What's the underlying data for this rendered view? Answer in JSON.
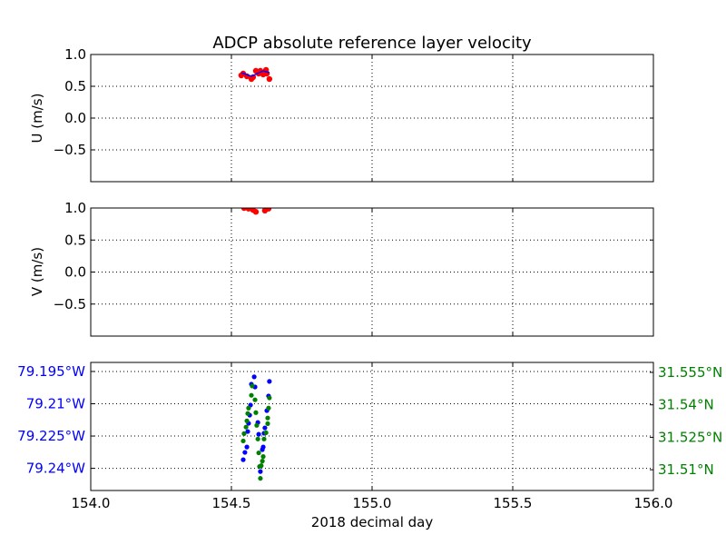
{
  "chart_data": {
    "type": "scatter",
    "title": "ADCP absolute reference layer velocity",
    "xlabel": "2018 decimal day",
    "xlim": [
      154.0,
      156.0
    ],
    "xticks": [
      154.0,
      154.5,
      155.0,
      155.5,
      156.0
    ],
    "xtick_labels": [
      "154.0",
      "154.5",
      "155.0",
      "155.5",
      "156.0"
    ],
    "grid": true,
    "colors": {
      "points": "#ff0000",
      "smooth": "#0000ff",
      "lon": "#0000ff",
      "lat": "#008000",
      "grid": "#000000"
    },
    "panels": [
      {
        "ylabel": "U (m/s)",
        "ylim": [
          -1.0,
          1.0
        ],
        "yticks": [
          1.0,
          0.5,
          0.0,
          -0.5
        ],
        "ytick_labels": [
          "1.0",
          "0.5",
          "0.0",
          "−0.5"
        ],
        "points": {
          "x": [
            154.535,
            154.542,
            154.555,
            154.571,
            154.577,
            154.587,
            154.597,
            154.603,
            154.613,
            154.623,
            154.626,
            154.635
          ],
          "y": [
            0.671,
            0.7,
            0.657,
            0.614,
            0.643,
            0.743,
            0.7,
            0.743,
            0.686,
            0.757,
            0.7,
            0.614
          ]
        },
        "smooth": {
          "x": [
            154.535,
            154.571,
            154.613,
            154.635
          ],
          "y": [
            0.714,
            0.657,
            0.743,
            0.714
          ]
        }
      },
      {
        "ylabel": "V (m/s)",
        "ylim": [
          -1.0,
          1.0
        ],
        "yticks": [
          1.0,
          0.5,
          0.0,
          -0.5
        ],
        "ytick_labels": [
          "1.0",
          "0.5",
          "0.0",
          "−0.5"
        ],
        "points": {
          "x": [
            154.545,
            154.552,
            154.561,
            154.577,
            154.587,
            154.597,
            154.619,
            154.626,
            154.632,
            154.571,
            154.606
          ],
          "y": [
            1.0,
            1.02,
            0.99,
            0.97,
            0.94,
            1.05,
            0.96,
            1.0,
            0.99,
            1.04,
            1.06
          ]
        },
        "smooth": {
          "x": [
            154.545,
            154.635
          ],
          "y": [
            1.03,
            1.03
          ]
        }
      },
      {
        "ylabel_left": "",
        "lon": {
          "ylim": [
            -79.2503,
            -79.1908
          ],
          "yticks": [
            -79.195,
            -79.21,
            -79.225,
            -79.24
          ],
          "ytick_labels": [
            "79.195°W",
            "79.21°W",
            "79.225°W",
            "79.24°W"
          ],
          "x": [
            154.581,
            154.635,
            154.571,
            154.584,
            154.632,
            154.568,
            154.626,
            154.565,
            154.594,
            154.561,
            154.619,
            154.616,
            154.558,
            154.597,
            154.613,
            154.555,
            154.548,
            154.61,
            154.542,
            154.603
          ],
          "y": [
            -79.1975,
            -79.1996,
            -79.2009,
            -79.2022,
            -79.2064,
            -79.2106,
            -79.2132,
            -79.2153,
            -79.2187,
            -79.2191,
            -79.2212,
            -79.2237,
            -79.2229,
            -79.2242,
            -79.2301,
            -79.2301,
            -79.2326,
            -79.2313,
            -79.236,
            -79.2415
          ]
        },
        "lat": {
          "ylim": [
            31.5004,
            31.5596
          ],
          "yticks": [
            31.555,
            31.54,
            31.525,
            31.51
          ],
          "ytick_labels": [
            "31.555°N",
            "31.54°N",
            "31.525°N",
            "31.51°N"
          ],
          "x": [
            154.574,
            154.571,
            154.584,
            154.635,
            154.561,
            154.587,
            154.558,
            154.632,
            154.629,
            154.555,
            154.629,
            154.552,
            154.59,
            154.623,
            154.545,
            154.616,
            154.594,
            154.542,
            154.613,
            154.597,
            154.61,
            154.606,
            154.6,
            154.603
          ],
          "y": [
            31.5487,
            31.5444,
            31.5423,
            31.5432,
            31.5385,
            31.5364,
            31.536,
            31.5385,
            31.5339,
            31.5326,
            31.5313,
            31.5297,
            31.5305,
            31.5271,
            31.5267,
            31.5242,
            31.5242,
            31.5233,
            31.5161,
            31.5178,
            31.514,
            31.5119,
            31.5115,
            31.506
          ]
        }
      }
    ]
  }
}
